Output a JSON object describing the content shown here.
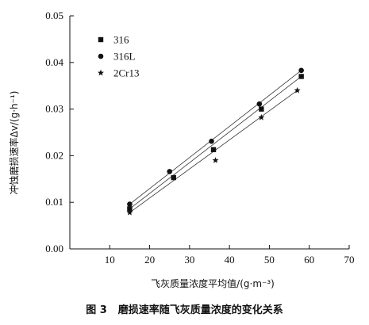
{
  "chart_data": {
    "type": "scatter",
    "title": "",
    "xlabel": "飞灰质量浓度平均值/(g·m⁻³)",
    "ylabel": "冲蚀磨损速率Δv/(g·h⁻¹)",
    "xlim": [
      0,
      70
    ],
    "ylim": [
      0,
      0.05
    ],
    "xticks": [
      "10",
      "20",
      "30",
      "40",
      "50",
      "60",
      "70"
    ],
    "yticks": [
      "0.00",
      "0.01",
      "0.02",
      "0.03",
      "0.04",
      "0.05"
    ],
    "grid": false,
    "legend_position": "top-left",
    "series": [
      {
        "name": "316",
        "marker": "square",
        "x": [
          15,
          26,
          36,
          48,
          58
        ],
        "y": [
          0.0086,
          0.0153,
          0.0213,
          0.03,
          0.037
        ],
        "fit": [
          [
            15,
            0.0086
          ],
          [
            58,
            0.037
          ]
        ]
      },
      {
        "name": "316L",
        "marker": "circle",
        "x": [
          15,
          25,
          35.5,
          47.5,
          58
        ],
        "y": [
          0.0096,
          0.0166,
          0.0231,
          0.0311,
          0.0383
        ],
        "fit": [
          [
            15,
            0.0096
          ],
          [
            58,
            0.0383
          ]
        ]
      },
      {
        "name": "2Cr13",
        "marker": "star",
        "x": [
          15,
          36.5,
          48,
          57
        ],
        "y": [
          0.0078,
          0.019,
          0.0282,
          0.034
        ],
        "fit": [
          [
            15,
            0.0078
          ],
          [
            57,
            0.034
          ]
        ]
      }
    ]
  },
  "caption": {
    "figure_number": "图 3",
    "text": "磨损速率随飞灰质量浓度的变化关系"
  }
}
